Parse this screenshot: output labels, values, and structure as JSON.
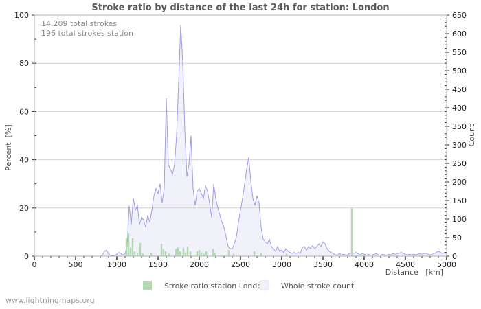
{
  "page": {
    "watermark": "www.lightningmaps.org"
  },
  "annotations": {
    "total_strokes": "14.209 total strokes",
    "total_strokes_station": "196 total strokes station"
  },
  "chart_data": {
    "type": "area",
    "title": "Stroke ratio by distance of the last 24h for station: London",
    "legend_position": "bottom-center",
    "grid": {
      "interval_percent": 20,
      "color": "#d2d2d2",
      "horizontal_only": true
    },
    "frame_color": "#b0b0b0",
    "tick_color": "#2b2b2b",
    "x_axis": {
      "label": "Distance   [km]",
      "min": 0,
      "max": 5000,
      "major_tick": 500,
      "minor_tick": 100
    },
    "y_left_axis": {
      "label": "Percent  [%]",
      "min": 0,
      "max": 100,
      "major_tick": 20,
      "minor_tick": 10
    },
    "y_right_axis": {
      "label": "Count",
      "min": 0,
      "max": 650,
      "major_tick": 50,
      "minor_tick": 10
    },
    "series": [
      {
        "name": "Stroke ratio station London",
        "type": "bar",
        "axis": "percent",
        "color": "#b3d9b3",
        "points": [
          [
            1117,
            7.5
          ],
          [
            1142,
            9.5
          ],
          [
            1167,
            3.5
          ],
          [
            1192,
            7.5
          ],
          [
            1217,
            2
          ],
          [
            1250,
            1.5
          ],
          [
            1283,
            5.5
          ],
          [
            1317,
            1
          ],
          [
            1417,
            1.5
          ],
          [
            1542,
            5
          ],
          [
            1567,
            3
          ],
          [
            1592,
            2
          ],
          [
            1633,
            1
          ],
          [
            1717,
            3
          ],
          [
            1742,
            3.5
          ],
          [
            1767,
            2
          ],
          [
            1808,
            3.5
          ],
          [
            1833,
            1.5
          ],
          [
            1858,
            4
          ],
          [
            1892,
            2
          ],
          [
            1975,
            2
          ],
          [
            2000,
            2.5
          ],
          [
            2025,
            1.5
          ],
          [
            2058,
            1
          ],
          [
            2083,
            2
          ],
          [
            2167,
            3
          ],
          [
            2192,
            1.5
          ],
          [
            2358,
            2.5
          ],
          [
            2417,
            1
          ],
          [
            2667,
            2
          ],
          [
            2750,
            1.5
          ],
          [
            3058,
            1
          ],
          [
            3850,
            20
          ]
        ]
      },
      {
        "name": "Whole stroke count",
        "type": "area",
        "axis": "count",
        "line_color": "#9d9de4",
        "fill_color": "#f1f1fa",
        "points": [
          [
            0,
            0
          ],
          [
            800,
            0
          ],
          [
            825,
            3
          ],
          [
            850,
            13
          ],
          [
            875,
            16
          ],
          [
            900,
            6
          ],
          [
            925,
            2
          ],
          [
            950,
            1
          ],
          [
            975,
            2
          ],
          [
            1000,
            5
          ],
          [
            1025,
            10
          ],
          [
            1050,
            7
          ],
          [
            1075,
            3
          ],
          [
            1100,
            7
          ],
          [
            1125,
            26
          ],
          [
            1150,
            136
          ],
          [
            1175,
            85
          ],
          [
            1200,
            156
          ],
          [
            1225,
            124
          ],
          [
            1250,
            137
          ],
          [
            1275,
            85
          ],
          [
            1300,
            104
          ],
          [
            1325,
            98
          ],
          [
            1350,
            78
          ],
          [
            1375,
            111
          ],
          [
            1400,
            91
          ],
          [
            1425,
            124
          ],
          [
            1450,
            163
          ],
          [
            1475,
            182
          ],
          [
            1500,
            169
          ],
          [
            1525,
            195
          ],
          [
            1550,
            143
          ],
          [
            1575,
            182
          ],
          [
            1600,
            426
          ],
          [
            1625,
            247
          ],
          [
            1650,
            234
          ],
          [
            1675,
            221
          ],
          [
            1700,
            247
          ],
          [
            1725,
            325
          ],
          [
            1750,
            468
          ],
          [
            1775,
            624
          ],
          [
            1800,
            520
          ],
          [
            1825,
            338
          ],
          [
            1850,
            215
          ],
          [
            1875,
            247
          ],
          [
            1900,
            325
          ],
          [
            1925,
            182
          ],
          [
            1950,
            137
          ],
          [
            1975,
            176
          ],
          [
            2000,
            182
          ],
          [
            2025,
            169
          ],
          [
            2050,
            156
          ],
          [
            2075,
            189
          ],
          [
            2100,
            176
          ],
          [
            2125,
            143
          ],
          [
            2150,
            104
          ],
          [
            2175,
            195
          ],
          [
            2200,
            156
          ],
          [
            2225,
            130
          ],
          [
            2250,
            111
          ],
          [
            2275,
            91
          ],
          [
            2300,
            78
          ],
          [
            2325,
            52
          ],
          [
            2350,
            26
          ],
          [
            2375,
            20
          ],
          [
            2400,
            20
          ],
          [
            2425,
            33
          ],
          [
            2450,
            52
          ],
          [
            2475,
            91
          ],
          [
            2500,
            124
          ],
          [
            2525,
            156
          ],
          [
            2550,
            195
          ],
          [
            2575,
            234
          ],
          [
            2600,
            267
          ],
          [
            2625,
            202
          ],
          [
            2650,
            156
          ],
          [
            2675,
            137
          ],
          [
            2700,
            163
          ],
          [
            2725,
            143
          ],
          [
            2750,
            78
          ],
          [
            2775,
            46
          ],
          [
            2800,
            39
          ],
          [
            2825,
            33
          ],
          [
            2850,
            46
          ],
          [
            2875,
            26
          ],
          [
            2900,
            20
          ],
          [
            2925,
            13
          ],
          [
            2950,
            26
          ],
          [
            2975,
            13
          ],
          [
            3000,
            16
          ],
          [
            3025,
            10
          ],
          [
            3050,
            20
          ],
          [
            3075,
            13
          ],
          [
            3100,
            10
          ],
          [
            3125,
            7
          ],
          [
            3150,
            10
          ],
          [
            3175,
            7
          ],
          [
            3200,
            10
          ],
          [
            3225,
            7
          ],
          [
            3250,
            23
          ],
          [
            3275,
            26
          ],
          [
            3300,
            16
          ],
          [
            3325,
            26
          ],
          [
            3350,
            20
          ],
          [
            3375,
            29
          ],
          [
            3400,
            20
          ],
          [
            3425,
            26
          ],
          [
            3450,
            33
          ],
          [
            3475,
            26
          ],
          [
            3500,
            39
          ],
          [
            3525,
            33
          ],
          [
            3550,
            20
          ],
          [
            3575,
            13
          ],
          [
            3600,
            10
          ],
          [
            3625,
            7
          ],
          [
            3650,
            3
          ],
          [
            3675,
            3
          ],
          [
            3700,
            7
          ],
          [
            3725,
            3
          ],
          [
            3750,
            5
          ],
          [
            3775,
            3
          ],
          [
            3800,
            3
          ],
          [
            3825,
            7
          ],
          [
            3850,
            10
          ],
          [
            3875,
            7
          ],
          [
            3900,
            10
          ],
          [
            3925,
            7
          ],
          [
            3950,
            3
          ],
          [
            3975,
            7
          ],
          [
            4000,
            5
          ],
          [
            4025,
            3
          ],
          [
            4050,
            5
          ],
          [
            4075,
            3
          ],
          [
            4100,
            3
          ],
          [
            4125,
            5
          ],
          [
            4150,
            7
          ],
          [
            4175,
            3
          ],
          [
            4200,
            3
          ],
          [
            4225,
            5
          ],
          [
            4250,
            3
          ],
          [
            4275,
            3
          ],
          [
            4300,
            5
          ],
          [
            4325,
            3
          ],
          [
            4350,
            7
          ],
          [
            4375,
            5
          ],
          [
            4400,
            7
          ],
          [
            4425,
            8
          ],
          [
            4450,
            10
          ],
          [
            4475,
            7
          ],
          [
            4500,
            5
          ],
          [
            4525,
            3
          ],
          [
            4550,
            5
          ],
          [
            4575,
            3
          ],
          [
            4600,
            5
          ],
          [
            4625,
            3
          ],
          [
            4650,
            5
          ],
          [
            4675,
            7
          ],
          [
            4700,
            5
          ],
          [
            4725,
            7
          ],
          [
            4750,
            8
          ],
          [
            4775,
            5
          ],
          [
            4800,
            3
          ],
          [
            4825,
            5
          ],
          [
            4850,
            7
          ],
          [
            4875,
            10
          ],
          [
            4900,
            13
          ],
          [
            4925,
            10
          ],
          [
            4950,
            7
          ],
          [
            4975,
            10
          ],
          [
            5000,
            7
          ]
        ]
      }
    ]
  }
}
